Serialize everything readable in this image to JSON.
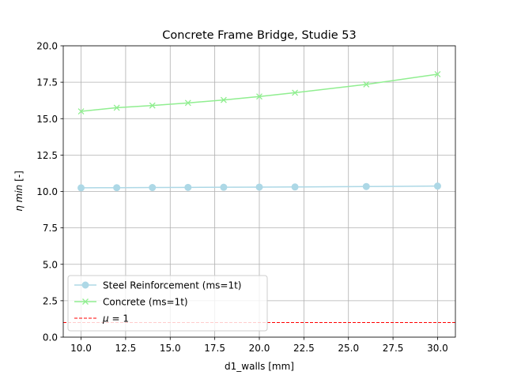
{
  "chart_data": {
    "type": "line",
    "title": "Concrete Frame Bridge, Studie 53",
    "xlabel": "d1_walls [mm]",
    "ylabel_symbol": "η min",
    "ylabel_unit": " [-]",
    "xlim": [
      9.0,
      31.0
    ],
    "ylim": [
      0.0,
      20.0
    ],
    "xticks": [
      10.0,
      12.5,
      15.0,
      17.5,
      20.0,
      22.5,
      25.0,
      27.5,
      30.0
    ],
    "yticks": [
      0.0,
      2.5,
      5.0,
      7.5,
      10.0,
      12.5,
      15.0,
      17.5,
      20.0
    ],
    "grid": true,
    "legend_position": "lower-left",
    "series": [
      {
        "name": "Steel Reinforcement (ms=1t)",
        "color": "#add8e6",
        "marker": "circle",
        "x": [
          10,
          12,
          14,
          16,
          18,
          20,
          22,
          26,
          30
        ],
        "y": [
          10.25,
          10.26,
          10.27,
          10.28,
          10.29,
          10.3,
          10.31,
          10.34,
          10.37
        ]
      },
      {
        "name": "Concrete (ms=1t)",
        "color": "#90ee90",
        "marker": "x",
        "x": [
          10,
          12,
          14,
          16,
          18,
          20,
          22,
          26,
          30
        ],
        "y": [
          15.5,
          15.75,
          15.9,
          16.08,
          16.28,
          16.52,
          16.78,
          17.35,
          18.05
        ]
      }
    ],
    "reference_line": {
      "name_symbol": "μ",
      "name_suffix": " = 1",
      "y": 1.0,
      "color": "#ff0000",
      "style": "dashed"
    }
  }
}
